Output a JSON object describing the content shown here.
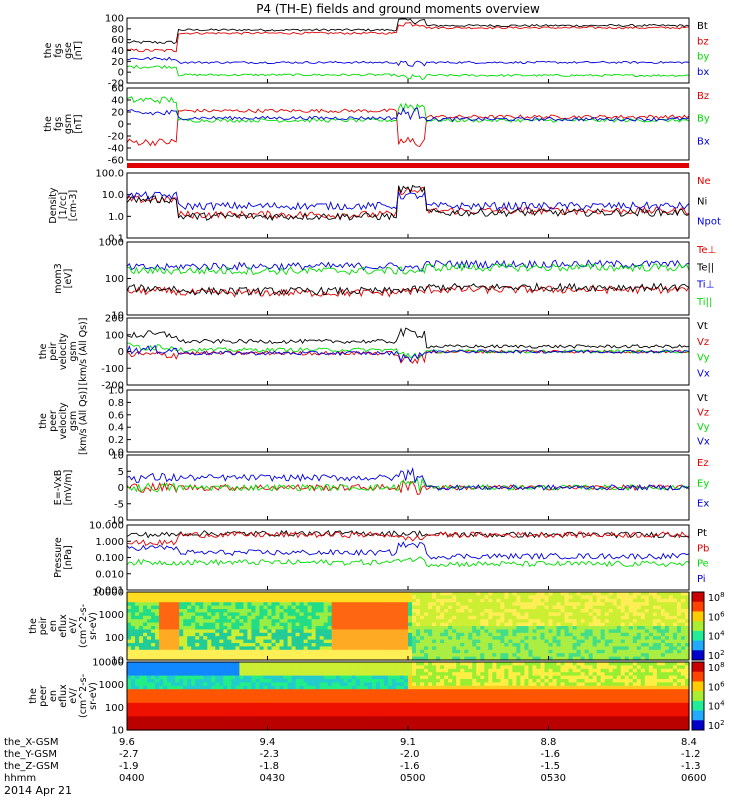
{
  "title": "P4 (TH-E) fields and ground moments overview",
  "date": "2014 Apr 21",
  "colors": {
    "black": "#000000",
    "red": "#e00000",
    "green": "#00dd00",
    "blue": "#0000e0"
  },
  "chart_data": [
    {
      "type": "line",
      "ylabel": [
        "the",
        "fgs",
        "gse",
        "[nT]"
      ],
      "yticks": [
        "100",
        "80",
        "60",
        "40",
        "20",
        "0",
        "-20"
      ],
      "ylim": [
        -20,
        100
      ],
      "series": [
        {
          "name": "Bt",
          "color": "black"
        },
        {
          "name": "bz",
          "color": "red"
        },
        {
          "name": "by",
          "color": "green"
        },
        {
          "name": "bx",
          "color": "blue"
        }
      ]
    },
    {
      "type": "line",
      "ylabel": [
        "the",
        "fgs",
        "gsm",
        "[nT]"
      ],
      "yticks": [
        "60",
        "40",
        "20",
        "0",
        "-20",
        "-40",
        "-60"
      ],
      "ylim": [
        -60,
        60
      ],
      "series": [
        {
          "name": "Bz",
          "color": "red"
        },
        {
          "name": "By",
          "color": "green"
        },
        {
          "name": "Bx",
          "color": "blue"
        }
      ]
    },
    {
      "type": "line",
      "ylabel": [
        "Density",
        "[1/cc]",
        "[cm-3]"
      ],
      "yticks": [
        "100.0",
        "10.0",
        "1.0",
        "0.1"
      ],
      "ylim": [
        0.1,
        100
      ],
      "log": true,
      "series": [
        {
          "name": "Ne",
          "color": "red"
        },
        {
          "name": "Ni",
          "color": "black"
        },
        {
          "name": "Npot",
          "color": "blue"
        }
      ]
    },
    {
      "type": "line",
      "ylabel": [
        "mom3",
        "[eV]"
      ],
      "yticks": [
        "1000",
        "100",
        "10"
      ],
      "ylim": [
        5,
        10000
      ],
      "log": true,
      "series": [
        {
          "name": "Te⊥",
          "color": "red"
        },
        {
          "name": "Te||",
          "color": "black"
        },
        {
          "name": "Ti⊥",
          "color": "blue"
        },
        {
          "name": "Ti||",
          "color": "green"
        }
      ]
    },
    {
      "type": "line",
      "ylabel": [
        "the",
        "peir",
        "velocity",
        "gsm",
        "[km/s (All Qs)]"
      ],
      "yticks": [
        "200",
        "100",
        "0",
        "-100",
        "-200"
      ],
      "ylim": [
        -200,
        200
      ],
      "series": [
        {
          "name": "Vt",
          "color": "black"
        },
        {
          "name": "Vz",
          "color": "red"
        },
        {
          "name": "Vy",
          "color": "green"
        },
        {
          "name": "Vx",
          "color": "blue"
        }
      ]
    },
    {
      "type": "line",
      "ylabel": [
        "the",
        "peer",
        "velocity",
        "gsm",
        "[km/s (All Qs)]"
      ],
      "yticks": [
        "1.0",
        "0.8",
        "0.6",
        "0.4",
        "0.2",
        "0.0"
      ],
      "ylim": [
        0,
        1
      ],
      "series": [
        {
          "name": "Vt",
          "color": "black"
        },
        {
          "name": "Vz",
          "color": "red"
        },
        {
          "name": "Vy",
          "color": "green"
        },
        {
          "name": "Vx",
          "color": "blue"
        }
      ]
    },
    {
      "type": "line",
      "ylabel": [
        "E=-VxB",
        "[mV/m]"
      ],
      "yticks": [
        "10",
        "5",
        "0",
        "-5",
        "-10"
      ],
      "ylim": [
        -10,
        10
      ],
      "series": [
        {
          "name": "Ez",
          "color": "red"
        },
        {
          "name": "Ey",
          "color": "green"
        },
        {
          "name": "Ex",
          "color": "blue"
        }
      ]
    },
    {
      "type": "line",
      "ylabel": [
        "Pressure",
        "[nPa]"
      ],
      "yticks": [
        "10.000",
        "1.000",
        "0.100",
        "0.010",
        "0.001"
      ],
      "ylim": [
        0.001,
        10
      ],
      "log": true,
      "series": [
        {
          "name": "Pt",
          "color": "black"
        },
        {
          "name": "Pb",
          "color": "red"
        },
        {
          "name": "Pe",
          "color": "green"
        },
        {
          "name": "Pi",
          "color": "blue"
        }
      ]
    },
    {
      "type": "heatmap",
      "ylabel": [
        "the",
        "peir",
        "en",
        "eflux",
        "eV/",
        "(cm^2-s-",
        "sr-eV)"
      ],
      "yticks": [
        "10000",
        "1000",
        "100",
        "10"
      ],
      "ylim": [
        5,
        20000
      ],
      "log": true,
      "colorbar": [
        "10^8",
        "10^6",
        "10^4",
        "10^2"
      ]
    },
    {
      "type": "heatmap",
      "ylabel": [
        "the",
        "peer",
        "en",
        "eflux",
        "eV/",
        "(cm^2-s-",
        "sr-eV)"
      ],
      "yticks": [
        "10000",
        "1000",
        "100",
        "10"
      ],
      "ylim": [
        5,
        20000
      ],
      "log": true,
      "colorbar": [
        "10^8",
        "10^6",
        "10^4",
        "10^2"
      ]
    }
  ],
  "xaxis": {
    "row_labels": [
      "the_X-GSM",
      "the_Y-GSM",
      "the_Z-GSM",
      "hhmm"
    ],
    "columns": [
      {
        "x": "9.6",
        "y": "-2.7",
        "z": "-1.9",
        "hhmm": "0400"
      },
      {
        "x": "9.4",
        "y": "-2.3",
        "z": "-1.8",
        "hhmm": "0430"
      },
      {
        "x": "9.1",
        "y": "-2.0",
        "z": "-1.6",
        "hhmm": "0500"
      },
      {
        "x": "8.8",
        "y": "-1.6",
        "z": "-1.5",
        "hhmm": "0530"
      },
      {
        "x": "8.4",
        "y": "-1.2",
        "z": "-1.3",
        "hhmm": "0600"
      }
    ]
  }
}
